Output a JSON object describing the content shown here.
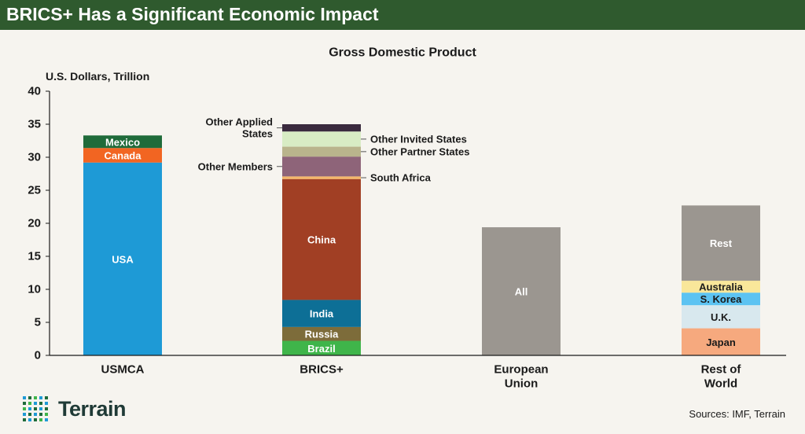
{
  "header": {
    "title": "BRICS+ Has a Significant Economic Impact"
  },
  "footer": {
    "brand": "Terrain",
    "sources": "Sources: IMF, Terrain"
  },
  "colors": {
    "header_bg": "#2f5a2e",
    "background": "#f6f4ef",
    "usa": "#1e9ad6",
    "canada": "#f26522",
    "mexico": "#1f6b3a",
    "china": "#a13f24",
    "india": "#0d6f96",
    "russia": "#7d6c3a",
    "brazil": "#3fb54a",
    "south_africa": "#f4b66a",
    "other_members": "#8e6479",
    "other_partner_states": "#b9b48c",
    "other_invited_states": "#d8ecc4",
    "other_applied_states": "#3a2a3e",
    "gray": "#9b9690",
    "australia": "#f9e79a",
    "s_korea": "#5cc3f2",
    "uk": "#d8e8ee",
    "japan": "#f6a97e"
  },
  "chart_data": {
    "type": "bar",
    "stacked": true,
    "title": "Gross Domestic Product",
    "ylabel": "U.S. Dollars, Trillion",
    "ylim": [
      0,
      40
    ],
    "yticks": [
      "0",
      "5",
      "10",
      "15",
      "20",
      "25",
      "30",
      "35",
      "40"
    ],
    "categories": [
      "USMCA",
      "BRICS+",
      "European Union",
      "Rest of World"
    ],
    "category_labels": [
      [
        "USMCA"
      ],
      [
        "BRICS+"
      ],
      [
        "European",
        "Union"
      ],
      [
        "Rest of",
        "World"
      ]
    ],
    "stacks": [
      {
        "category": "USMCA",
        "segments": [
          {
            "name": "USA",
            "value": 29.2,
            "color": "#1e9ad6",
            "label_position": "inside",
            "label_color": "#ffffff"
          },
          {
            "name": "Canada",
            "value": 2.2,
            "color": "#f26522",
            "label_position": "inside",
            "label_color": "#ffffff"
          },
          {
            "name": "Mexico",
            "value": 1.9,
            "color": "#1f6b3a",
            "label_position": "inside",
            "label_color": "#ffffff"
          }
        ]
      },
      {
        "category": "BRICS+",
        "segments": [
          {
            "name": "Brazil",
            "value": 2.2,
            "color": "#3fb54a",
            "label_position": "inside",
            "label_color": "#ffffff"
          },
          {
            "name": "Russia",
            "value": 2.1,
            "color": "#7d6c3a",
            "label_position": "inside",
            "label_color": "#ffffff"
          },
          {
            "name": "India",
            "value": 4.1,
            "color": "#0d6f96",
            "label_position": "inside",
            "label_color": "#ffffff"
          },
          {
            "name": "China",
            "value": 18.3,
            "color": "#a13f24",
            "label_position": "inside",
            "label_color": "#ffffff"
          },
          {
            "name": "South Africa",
            "value": 0.4,
            "color": "#f4b66a",
            "label_position": "right"
          },
          {
            "name": "Other Members",
            "value": 3.0,
            "color": "#8e6479",
            "label_position": "left"
          },
          {
            "name": "Other Partner States",
            "value": 1.5,
            "color": "#b9b48c",
            "label_position": "right"
          },
          {
            "name": "Other Invited States",
            "value": 2.3,
            "color": "#d8ecc4",
            "label_position": "right"
          },
          {
            "name": "Other Applied States",
            "value": 1.1,
            "color": "#3a2a3e",
            "label_position": "left",
            "label_lines": [
              "Other Applied",
              "States"
            ]
          }
        ]
      },
      {
        "category": "European Union",
        "segments": [
          {
            "name": "All",
            "value": 19.4,
            "color": "#9b9690",
            "label_position": "inside",
            "label_color": "#ffffff"
          }
        ]
      },
      {
        "category": "Rest of World",
        "segments": [
          {
            "name": "Japan",
            "value": 4.1,
            "color": "#f6a97e",
            "label_position": "inside",
            "label_color": "#1a1a1a"
          },
          {
            "name": "U.K.",
            "value": 3.5,
            "color": "#d8e8ee",
            "label_position": "inside",
            "label_color": "#1a1a1a"
          },
          {
            "name": "S. Korea",
            "value": 1.9,
            "color": "#5cc3f2",
            "label_position": "inside",
            "label_color": "#1a1a1a"
          },
          {
            "name": "Australia",
            "value": 1.8,
            "color": "#f9e79a",
            "label_position": "inside",
            "label_color": "#1a1a1a"
          },
          {
            "name": "Rest",
            "value": 11.4,
            "color": "#9b9690",
            "label_position": "inside",
            "label_color": "#ffffff"
          }
        ]
      }
    ]
  }
}
